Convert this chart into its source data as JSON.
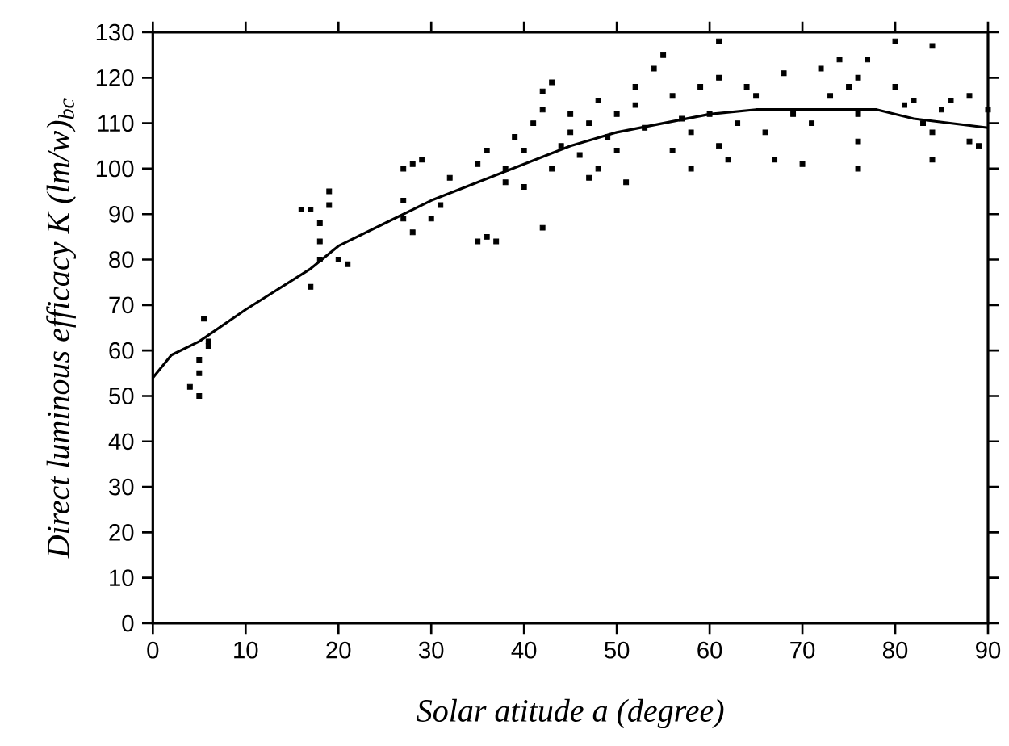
{
  "chart_data": {
    "type": "scatter",
    "xlabel": "Solar atitude a (degree)",
    "ylabel": "Direct luminous efficacy K (lm/w)$_{bc}$",
    "xlim": [
      0,
      90
    ],
    "ylim": [
      0,
      130
    ],
    "xticks": [
      0,
      10,
      20,
      30,
      40,
      50,
      60,
      70,
      80,
      90
    ],
    "yticks": [
      0,
      10,
      20,
      30,
      40,
      50,
      60,
      70,
      80,
      90,
      100,
      110,
      120,
      130
    ],
    "grid": false,
    "series": [
      {
        "marker": "square",
        "color": "#000000",
        "x": [
          4,
          5,
          5,
          5,
          6,
          5.5,
          6,
          16,
          17,
          18,
          18,
          19,
          19,
          20,
          17,
          18,
          21,
          27,
          28,
          29,
          27,
          27,
          28,
          30,
          31,
          32,
          35,
          36,
          37,
          35,
          36,
          38,
          38,
          40,
          40,
          41,
          42,
          42,
          43,
          39,
          42,
          43,
          44,
          45,
          45,
          46,
          47,
          47,
          48,
          48,
          49,
          50,
          50,
          51,
          52,
          52,
          53,
          54,
          55,
          56,
          56,
          57,
          58,
          58,
          59,
          60,
          61,
          61,
          62,
          63,
          64,
          65,
          66,
          67,
          68,
          69,
          70,
          71,
          72,
          73,
          74,
          75,
          76,
          76,
          76,
          76,
          77,
          80,
          81,
          82,
          83,
          84,
          84,
          85,
          86,
          88,
          88,
          89,
          90,
          80,
          61,
          84
        ],
        "values": [
          52,
          50,
          55,
          58,
          62,
          67,
          61,
          91,
          91,
          88,
          80,
          95,
          92,
          80,
          74,
          84,
          79,
          100,
          101,
          102,
          93,
          89,
          86,
          89,
          92,
          98,
          84,
          85,
          84,
          101,
          104,
          97,
          100,
          96,
          104,
          110,
          113,
          117,
          119,
          107,
          87,
          100,
          105,
          108,
          112,
          103,
          98,
          110,
          115,
          100,
          107,
          112,
          104,
          97,
          114,
          118,
          109,
          122,
          125,
          104,
          116,
          111,
          100,
          108,
          118,
          112,
          105,
          120,
          102,
          110,
          118,
          116,
          108,
          102,
          121,
          112,
          101,
          110,
          122,
          116,
          124,
          118,
          100,
          106,
          112,
          120,
          124,
          118,
          114,
          115,
          110,
          102,
          108,
          113,
          115,
          116,
          106,
          105,
          113,
          128,
          128,
          127
        ]
      },
      {
        "type": "line",
        "marker": "none",
        "color": "#000000",
        "x": [
          0,
          2,
          5,
          10,
          17,
          20,
          25,
          30,
          35,
          40,
          45,
          50,
          55,
          60,
          65,
          70,
          78,
          82,
          90
        ],
        "values": [
          54,
          59,
          62,
          69,
          78,
          83,
          88,
          93,
          97,
          101,
          105,
          108,
          110,
          112,
          113,
          113,
          113,
          111,
          109
        ]
      }
    ]
  }
}
